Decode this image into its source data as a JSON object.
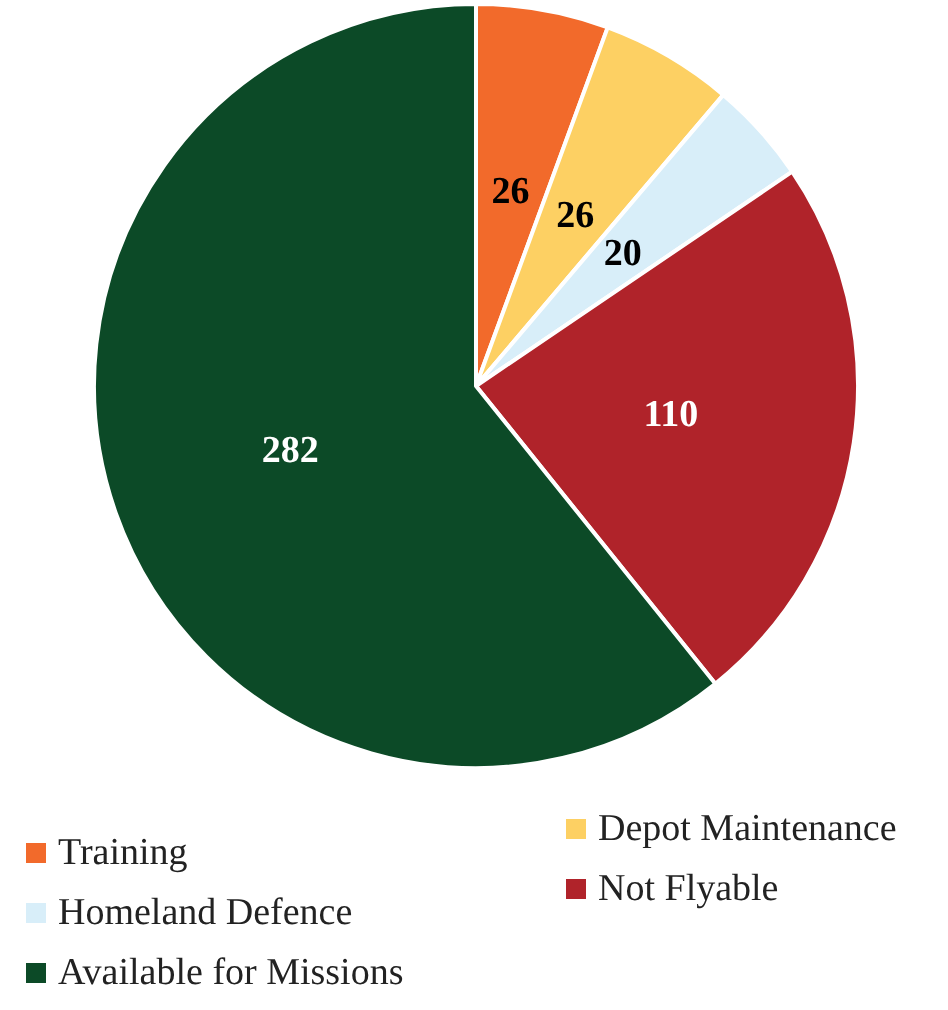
{
  "chart_data": {
    "type": "pie",
    "categories": [
      "Training",
      "Depot Maintenance",
      "Homeland Defence",
      "Not Flyable",
      "Available for Missions"
    ],
    "values": [
      26,
      26,
      20,
      110,
      282
    ],
    "colors": [
      "#f26a2b",
      "#fdd063",
      "#d8eef9",
      "#b0232a",
      "#0c4a27"
    ],
    "data_labels": true,
    "legend": "bottom"
  }
}
